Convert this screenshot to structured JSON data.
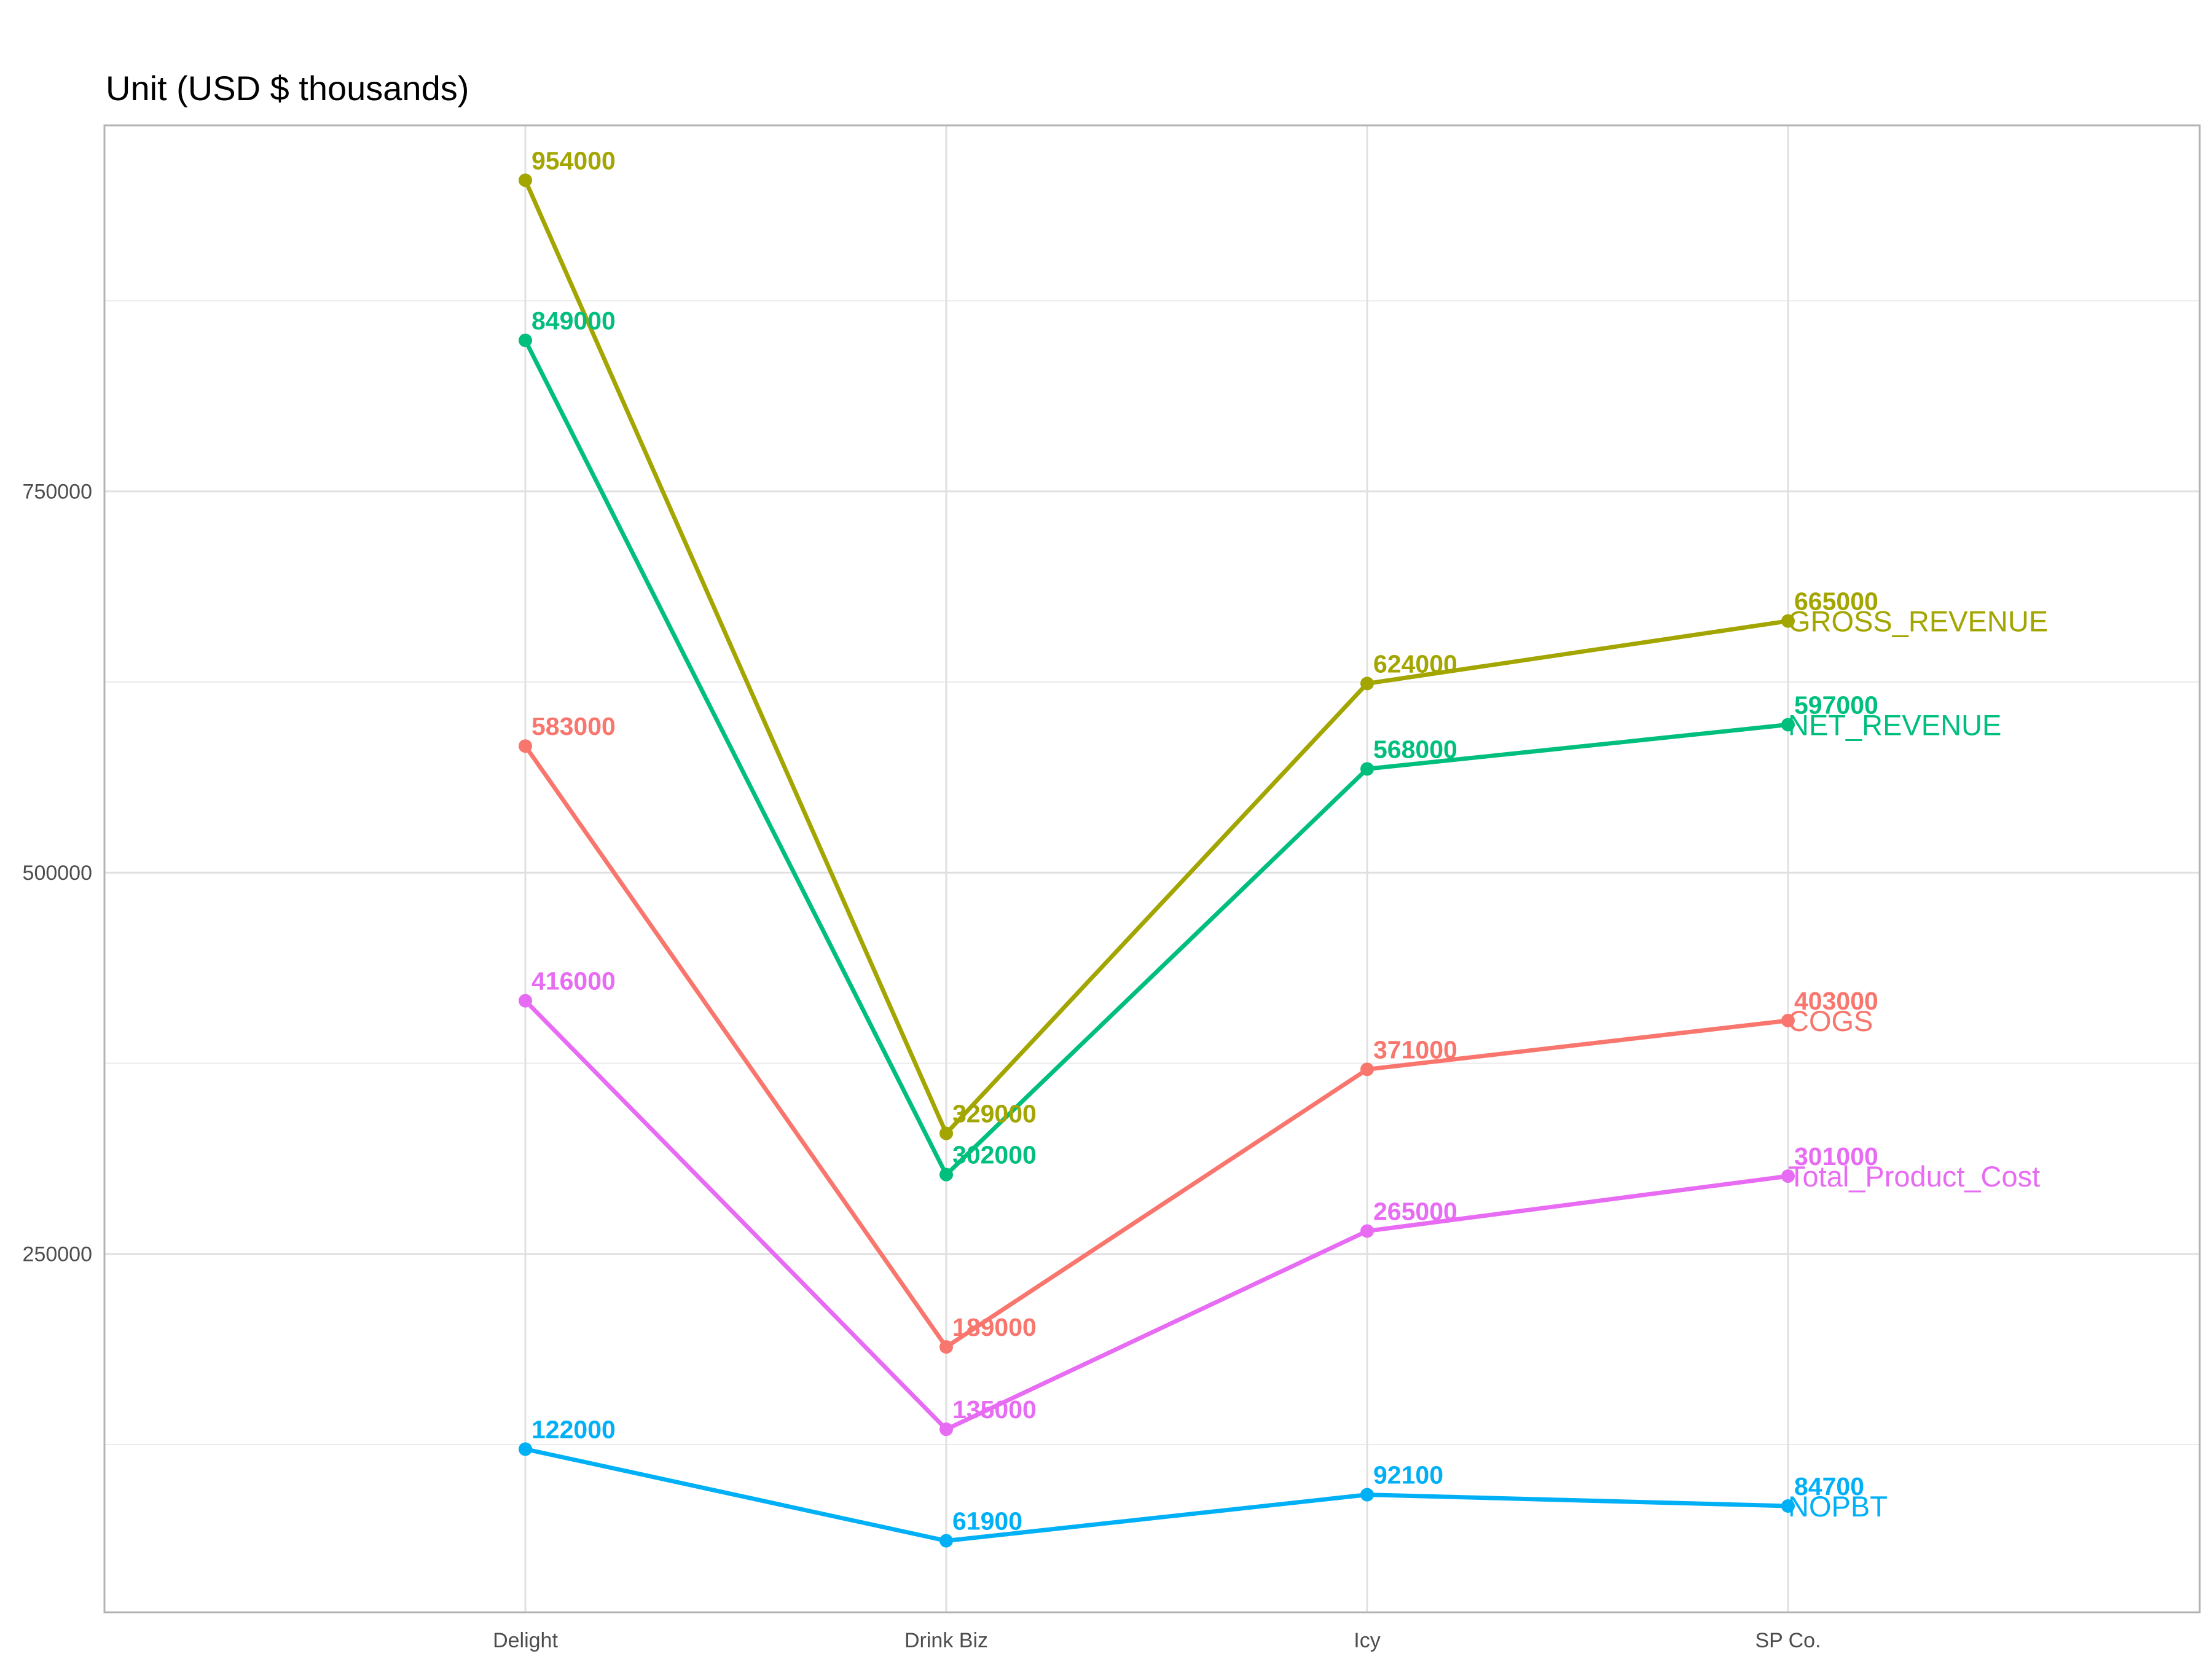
{
  "chart_data": {
    "type": "line",
    "title": "Unit (USD $ thousands)",
    "xlabel": "",
    "ylabel": "",
    "categories": [
      "Delight",
      "Drink Biz",
      "Icy",
      "SP Co."
    ],
    "ylim": [
      15000,
      990000
    ],
    "yticks": [
      250000,
      500000,
      750000
    ],
    "ytick_labels": [
      "250000",
      "500000",
      "750000"
    ],
    "grid": true,
    "legend": "end-of-line labels",
    "series": [
      {
        "name": "GROSS_REVENUE",
        "color": "#A3A500",
        "values": [
          954000,
          329000,
          624000,
          665000
        ],
        "labels": [
          "954000",
          "329000",
          "624000",
          "665000"
        ]
      },
      {
        "name": "NET_REVENUE",
        "color": "#00BF7D",
        "values": [
          849000,
          302000,
          568000,
          597000
        ],
        "labels": [
          "849000",
          "302000",
          "568000",
          "597000"
        ]
      },
      {
        "name": "COGS",
        "color": "#F8766D",
        "values": [
          583000,
          189000,
          371000,
          403000
        ],
        "labels": [
          "583000",
          "189000",
          "371000",
          "403000"
        ]
      },
      {
        "name": "Total_Product_Cost",
        "color": "#E76BF3",
        "values": [
          416000,
          135000,
          265000,
          301000
        ],
        "labels": [
          "416000",
          "135000",
          "265000",
          "301000"
        ]
      },
      {
        "name": "NOPBT",
        "color": "#00B0F6",
        "values": [
          122000,
          61900,
          92100,
          84700
        ],
        "labels": [
          "122000",
          "61900",
          "92100",
          "84700"
        ]
      }
    ]
  }
}
